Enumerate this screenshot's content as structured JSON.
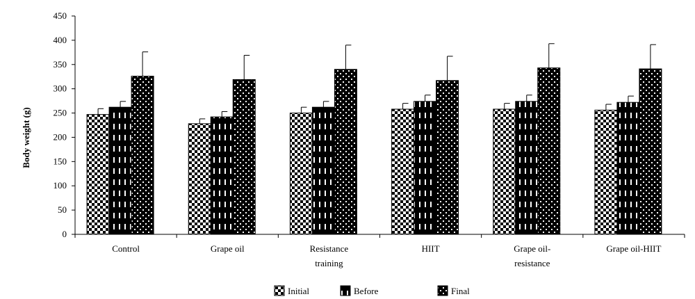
{
  "chart_data": {
    "type": "bar",
    "title": "",
    "xlabel": "",
    "ylabel": "Body weight (g)",
    "ylim": [
      0,
      450
    ],
    "yticks": [
      0,
      50,
      100,
      150,
      200,
      250,
      300,
      350,
      400,
      450
    ],
    "grid": false,
    "legend_position": "bottom",
    "categories": [
      [
        "Control"
      ],
      [
        "Grape oil"
      ],
      [
        "Resistance",
        "training"
      ],
      [
        "HIIT"
      ],
      [
        "Grape oil-",
        "resistance"
      ],
      [
        "Grape oil-HIIT"
      ]
    ],
    "series": [
      {
        "name": "Initial",
        "pattern": "checker",
        "values": [
          247,
          228,
          250,
          258,
          258,
          256
        ],
        "errors": [
          12,
          10,
          12,
          12,
          12,
          12
        ]
      },
      {
        "name": "Before",
        "pattern": "dashes",
        "values": [
          262,
          242,
          262,
          274,
          274,
          272
        ],
        "errors": [
          12,
          11,
          12,
          13,
          13,
          13
        ]
      },
      {
        "name": "Final",
        "pattern": "dots",
        "values": [
          326,
          319,
          340,
          317,
          343,
          341
        ],
        "errors": [
          50,
          50,
          50,
          50,
          50,
          50
        ]
      }
    ]
  }
}
